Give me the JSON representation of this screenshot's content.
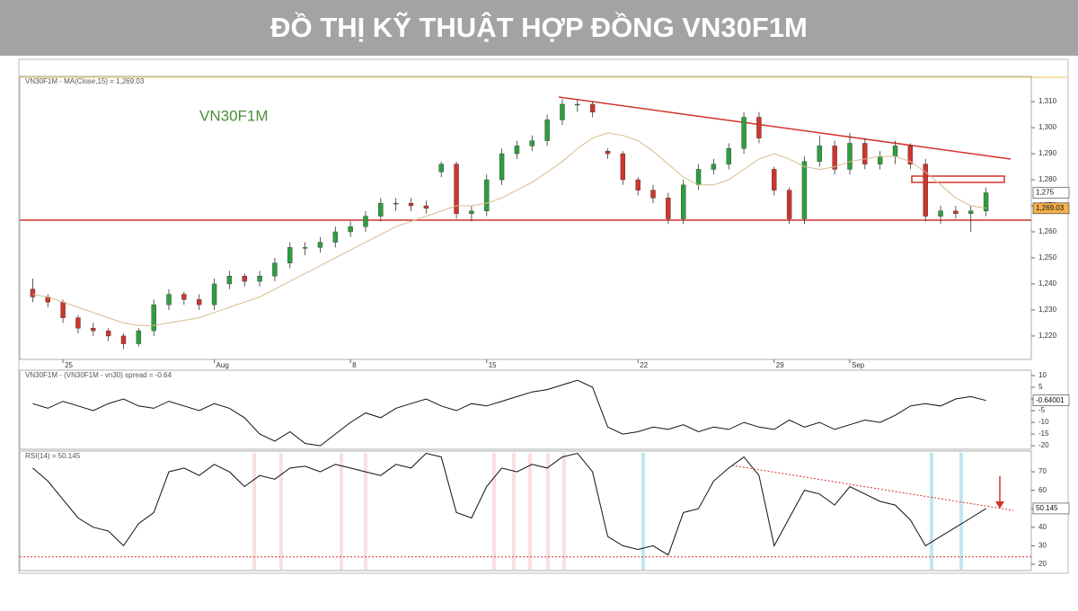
{
  "header": {
    "title": "ĐỒ THỊ KỸ THUẬT HỢP ĐỒNG VN30F1M"
  },
  "chart_data": [
    {
      "type": "candlestick",
      "legend": "VN30F1M - MA(Close,15) = 1,269.03",
      "annotation": "VN30F1M",
      "categories": [
        null,
        null,
        "25",
        null,
        null,
        null,
        null,
        null,
        null,
        null,
        null,
        null,
        "Aug",
        null,
        null,
        null,
        null,
        null,
        null,
        null,
        null,
        "8",
        null,
        null,
        null,
        null,
        null,
        null,
        null,
        null,
        "15",
        null,
        null,
        null,
        null,
        null,
        null,
        null,
        null,
        null,
        "22",
        null,
        null,
        null,
        null,
        null,
        null,
        null,
        null,
        "29",
        null,
        null,
        null,
        null,
        "Sep",
        null,
        null,
        null,
        null,
        null,
        null,
        null,
        null,
        null
      ],
      "open": [
        1238,
        1235,
        1233,
        1227,
        1223,
        1222,
        1220,
        1217,
        1222,
        1232,
        1236,
        1234,
        1232,
        1240,
        1243,
        1241,
        1243,
        1248,
        1254,
        1254,
        1256,
        1260,
        1262,
        1266,
        1271,
        1271,
        1270,
        1283,
        1286,
        1267,
        1268,
        1280,
        1290,
        1293,
        1295,
        1303,
        1309,
        1309,
        1291,
        1290,
        1280,
        1276,
        1273,
        1265,
        1278,
        1284,
        1286,
        1292,
        1304,
        1284,
        1276,
        1265,
        1287,
        1293,
        1284,
        1294,
        1286,
        1289,
        1293,
        1286,
        1266,
        1268,
        1267,
        1268
      ],
      "high": [
        1242,
        1236,
        1234,
        1228,
        1225,
        1223,
        1221,
        1223,
        1234,
        1238,
        1237,
        1236,
        1242,
        1245,
        1244,
        1245,
        1250,
        1256,
        1256,
        1258,
        1262,
        1264,
        1268,
        1273,
        1273,
        1273,
        1272,
        1287,
        1287,
        1270,
        1282,
        1292,
        1295,
        1297,
        1305,
        1311,
        1311,
        1310,
        1292,
        1291,
        1281,
        1278,
        1275,
        1280,
        1286,
        1288,
        1294,
        1306,
        1306,
        1285,
        1277,
        1289,
        1297,
        1295,
        1298,
        1296,
        1291,
        1295,
        1294,
        1288,
        1270,
        1270,
        1270,
        1277
      ],
      "low": [
        1233,
        1231,
        1225,
        1221,
        1220,
        1218,
        1215,
        1216,
        1220,
        1230,
        1232,
        1230,
        1230,
        1238,
        1239,
        1239,
        1241,
        1246,
        1251,
        1252,
        1254,
        1258,
        1260,
        1264,
        1268,
        1268,
        1267,
        1281,
        1265,
        1264,
        1266,
        1278,
        1288,
        1291,
        1293,
        1301,
        1306,
        1304,
        1288,
        1278,
        1274,
        1271,
        1263,
        1263,
        1276,
        1282,
        1284,
        1290,
        1294,
        1274,
        1263,
        1263,
        1285,
        1282,
        1282,
        1284,
        1284,
        1286,
        1284,
        1264,
        1263,
        1265,
        1260,
        1266
      ],
      "close": [
        1235,
        1233,
        1227,
        1223,
        1222,
        1220,
        1217,
        1222,
        1232,
        1236,
        1234,
        1232,
        1240,
        1243,
        1241,
        1243,
        1248,
        1254,
        1254,
        1256,
        1260,
        1262,
        1266,
        1271,
        1271,
        1270,
        1269,
        1286,
        1267,
        1268,
        1280,
        1290,
        1293,
        1295,
        1303,
        1309,
        1309,
        1306,
        1290,
        1280,
        1276,
        1273,
        1265,
        1278,
        1284,
        1286,
        1292,
        1304,
        1296,
        1276,
        1265,
        1287,
        1293,
        1284,
        1294,
        1286,
        1289,
        1293,
        1286,
        1266,
        1268,
        1267,
        1268,
        1275
      ],
      "up_color": "#2e9e3e",
      "down_color": "#d0342c",
      "ma": {
        "color": "#d8bb8e",
        "values": [
          1236,
          1235,
          1233,
          1231,
          1229,
          1227,
          1225,
          1224,
          1224,
          1225,
          1226,
          1227,
          1229,
          1231,
          1233,
          1235,
          1238,
          1241,
          1244,
          1247,
          1250,
          1253,
          1256,
          1259,
          1262,
          1264,
          1266,
          1268,
          1270,
          1270,
          1271,
          1273,
          1276,
          1279,
          1283,
          1287,
          1292,
          1296,
          1298,
          1297,
          1295,
          1291,
          1286,
          1281,
          1278,
          1278,
          1280,
          1284,
          1288,
          1290,
          1288,
          1285,
          1284,
          1285,
          1287,
          1288,
          1289,
          1289,
          1287,
          1283,
          1278,
          1273,
          1270,
          1269.03
        ]
      },
      "hlines": [
        1264.5
      ],
      "ylim": [
        1211,
        1319.7
      ],
      "yticks": [
        {
          "value": 1220,
          "label": "1,220"
        },
        {
          "value": 1230,
          "label": "1,230"
        },
        {
          "value": 1240,
          "label": "1,240"
        },
        {
          "value": 1250,
          "label": "1,250"
        },
        {
          "value": 1260,
          "label": "1,260"
        },
        {
          "value": 1270,
          "label": "1,270"
        },
        {
          "value": 1280,
          "label": "1,280"
        },
        {
          "value": 1290,
          "label": "1,290"
        },
        {
          "value": 1300,
          "label": "1,300"
        },
        {
          "value": 1310,
          "label": "1,310"
        }
      ],
      "tags": [
        {
          "value": 1275,
          "label": "1,275"
        },
        {
          "value": 1269.03,
          "label": "1,269.03"
        }
      ]
    },
    {
      "type": "line",
      "legend": "VN30F1M - (VN30F1M - vn30) spread = -0.64",
      "color": "#111111",
      "values": [
        -2,
        -4,
        -1,
        -3,
        -5,
        -2,
        0,
        -3,
        -4,
        -1,
        -3,
        -5,
        -2,
        -4,
        -8,
        -15,
        -18,
        -14,
        -19,
        -20,
        -15,
        -10,
        -6,
        -8,
        -4,
        -2,
        0,
        -3,
        -5,
        -2,
        -3,
        -1,
        1,
        3,
        4,
        6,
        8,
        5,
        -12,
        -15,
        -14,
        -12,
        -13,
        -11,
        -14,
        -12,
        -13,
        -10,
        -12,
        -13,
        -9,
        -12,
        -10,
        -13,
        -11,
        -9,
        -10,
        -7,
        -3,
        -2,
        -3,
        0,
        1,
        -0.64
      ],
      "ylim": [
        -21.5,
        12.3
      ],
      "yticks": [
        10,
        5,
        0,
        -5,
        -10,
        -15,
        -20
      ],
      "tags": [
        {
          "value": -0.64001,
          "label": "-0.64001"
        }
      ]
    },
    {
      "type": "line",
      "legend": "RSI(14) = 50.145",
      "color": "#111111",
      "values": [
        72,
        65,
        55,
        45,
        40,
        38,
        30,
        42,
        48,
        70,
        72,
        68,
        74,
        70,
        62,
        68,
        66,
        72,
        73,
        70,
        74,
        72,
        70,
        68,
        74,
        72,
        80,
        78,
        48,
        45,
        62,
        72,
        70,
        74,
        72,
        78,
        80,
        70,
        35,
        30,
        28,
        30,
        25,
        48,
        50,
        65,
        72,
        78,
        68,
        30,
        45,
        60,
        58,
        52,
        62,
        58,
        54,
        52,
        44,
        30,
        35,
        40,
        45,
        50.145
      ],
      "hlines": [
        24
      ],
      "ylim": [
        16.6,
        81.2
      ],
      "yticks": [
        20,
        30,
        40,
        50,
        60,
        70
      ],
      "tags": [
        50.145
      ]
    }
  ]
}
